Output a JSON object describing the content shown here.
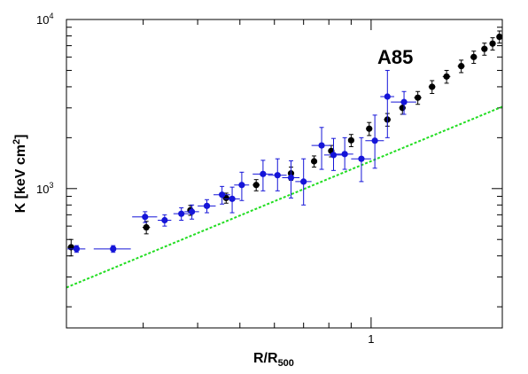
{
  "chart_data": {
    "type": "scatter",
    "title": "",
    "xlabel": "R/R",
    "xlabel_sub": "500",
    "ylabel": "K [keV cm",
    "ylabel_sup": "2",
    "ylabel_close": "]",
    "x_scale": "log",
    "y_scale": "log",
    "xlim": [
      0.2,
      2.0
    ],
    "ylim": [
      150,
      10000
    ],
    "x_tick_labels": [
      {
        "value": 1,
        "label": "1"
      }
    ],
    "y_tick_labels": [
      {
        "value": 1000,
        "base": "10",
        "exp": "3"
      },
      {
        "value": 10000,
        "base": "10",
        "exp": "4"
      }
    ],
    "annotation": {
      "text": "A85",
      "x": 1.03,
      "y": 5800
    },
    "grid": false,
    "colors": {
      "black_series": "#000000",
      "blue_series": "#1515d8",
      "model_line": "#22dd22"
    },
    "series": [
      {
        "style": "black-points",
        "points": [
          {
            "x": 0.205,
            "y": 450,
            "xerr": 0.004,
            "yerr_lo": 50,
            "yerr_hi": 50
          },
          {
            "x": 0.305,
            "y": 590,
            "xerr": 0.006,
            "yerr_lo": 50,
            "yerr_hi": 50
          },
          {
            "x": 0.385,
            "y": 745,
            "xerr": 0.006,
            "yerr_lo": 50,
            "yerr_hi": 50
          },
          {
            "x": 0.465,
            "y": 880,
            "xerr": 0.008,
            "yerr_lo": 60,
            "yerr_hi": 60
          },
          {
            "x": 0.545,
            "y": 1050,
            "xerr": 0.01,
            "yerr_lo": 80,
            "yerr_hi": 80
          },
          {
            "x": 0.655,
            "y": 1230,
            "xerr": 0.01,
            "yerr_lo": 110,
            "yerr_hi": 110
          },
          {
            "x": 0.74,
            "y": 1450,
            "xerr": 0.01,
            "yerr_lo": 110,
            "yerr_hi": 110
          },
          {
            "x": 0.81,
            "y": 1670,
            "xerr": 0.012,
            "yerr_lo": 130,
            "yerr_hi": 130
          },
          {
            "x": 0.9,
            "y": 1930,
            "xerr": 0.014,
            "yerr_lo": 160,
            "yerr_hi": 160
          },
          {
            "x": 0.99,
            "y": 2260,
            "xerr": 0.016,
            "yerr_lo": 200,
            "yerr_hi": 200
          },
          {
            "x": 1.09,
            "y": 2560,
            "xerr": 0.02,
            "yerr_lo": 220,
            "yerr_hi": 220
          },
          {
            "x": 1.18,
            "y": 3000,
            "xerr": 0.02,
            "yerr_lo": 250,
            "yerr_hi": 250
          },
          {
            "x": 1.28,
            "y": 3450,
            "xerr": 0.025,
            "yerr_lo": 300,
            "yerr_hi": 300
          },
          {
            "x": 1.38,
            "y": 4000,
            "xerr": 0.025,
            "yerr_lo": 350,
            "yerr_hi": 350
          },
          {
            "x": 1.49,
            "y": 4600,
            "xerr": 0.03,
            "yerr_lo": 400,
            "yerr_hi": 400
          },
          {
            "x": 1.61,
            "y": 5300,
            "xerr": 0.03,
            "yerr_lo": 450,
            "yerr_hi": 450
          },
          {
            "x": 1.72,
            "y": 6000,
            "xerr": 0.03,
            "yerr_lo": 500,
            "yerr_hi": 500
          },
          {
            "x": 1.82,
            "y": 6700,
            "xerr": 0.03,
            "yerr_lo": 550,
            "yerr_hi": 550
          },
          {
            "x": 1.9,
            "y": 7200,
            "xerr": 0.03,
            "yerr_lo": 600,
            "yerr_hi": 600
          },
          {
            "x": 1.97,
            "y": 7900,
            "xerr": 0.03,
            "yerr_lo": 650,
            "yerr_hi": 650
          }
        ]
      },
      {
        "style": "blue-points",
        "points": [
          {
            "x": 0.211,
            "y": 440,
            "xerr": 0.01,
            "yerr_lo": 20,
            "yerr_hi": 20
          },
          {
            "x": 0.256,
            "y": 440,
            "xerr": 0.025,
            "yerr_lo": 20,
            "yerr_hi": 20
          },
          {
            "x": 0.303,
            "y": 680,
            "xerr": 0.02,
            "yerr_lo": 50,
            "yerr_hi": 50
          },
          {
            "x": 0.336,
            "y": 650,
            "xerr": 0.012,
            "yerr_lo": 50,
            "yerr_hi": 50
          },
          {
            "x": 0.367,
            "y": 710,
            "xerr": 0.015,
            "yerr_lo": 60,
            "yerr_hi": 60
          },
          {
            "x": 0.388,
            "y": 730,
            "xerr": 0.015,
            "yerr_lo": 70,
            "yerr_hi": 70
          },
          {
            "x": 0.42,
            "y": 790,
            "xerr": 0.02,
            "yerr_lo": 70,
            "yerr_hi": 70
          },
          {
            "x": 0.455,
            "y": 920,
            "xerr": 0.02,
            "yerr_lo": 110,
            "yerr_hi": 110
          },
          {
            "x": 0.48,
            "y": 870,
            "xerr": 0.02,
            "yerr_lo": 150,
            "yerr_hi": 150
          },
          {
            "x": 0.505,
            "y": 1050,
            "xerr": 0.02,
            "yerr_lo": 200,
            "yerr_hi": 200
          },
          {
            "x": 0.565,
            "y": 1220,
            "xerr": 0.03,
            "yerr_lo": 250,
            "yerr_hi": 250
          },
          {
            "x": 0.61,
            "y": 1200,
            "xerr": 0.03,
            "yerr_lo": 230,
            "yerr_hi": 300
          },
          {
            "x": 0.655,
            "y": 1160,
            "xerr": 0.03,
            "yerr_lo": 280,
            "yerr_hi": 300
          },
          {
            "x": 0.7,
            "y": 1100,
            "xerr": 0.03,
            "yerr_lo": 300,
            "yerr_hi": 400
          },
          {
            "x": 0.77,
            "y": 1800,
            "xerr": 0.04,
            "yerr_lo": 500,
            "yerr_hi": 500
          },
          {
            "x": 0.82,
            "y": 1580,
            "xerr": 0.04,
            "yerr_lo": 300,
            "yerr_hi": 400
          },
          {
            "x": 0.87,
            "y": 1600,
            "xerr": 0.04,
            "yerr_lo": 300,
            "yerr_hi": 400
          },
          {
            "x": 0.95,
            "y": 1500,
            "xerr": 0.05,
            "yerr_lo": 400,
            "yerr_hi": 500
          },
          {
            "x": 1.02,
            "y": 1920,
            "xerr": 0.05,
            "yerr_lo": 600,
            "yerr_hi": 800
          },
          {
            "x": 1.09,
            "y": 3500,
            "xerr": 0.04,
            "yerr_lo": 1500,
            "yerr_hi": 1500
          },
          {
            "x": 1.19,
            "y": 3250,
            "xerr": 0.08,
            "yerr_lo": 500,
            "yerr_hi": 500
          }
        ]
      },
      {
        "style": "green-dotted-line",
        "line": [
          {
            "x": 0.2,
            "y": 260
          },
          {
            "x": 2.0,
            "y": 3050
          }
        ]
      }
    ]
  }
}
